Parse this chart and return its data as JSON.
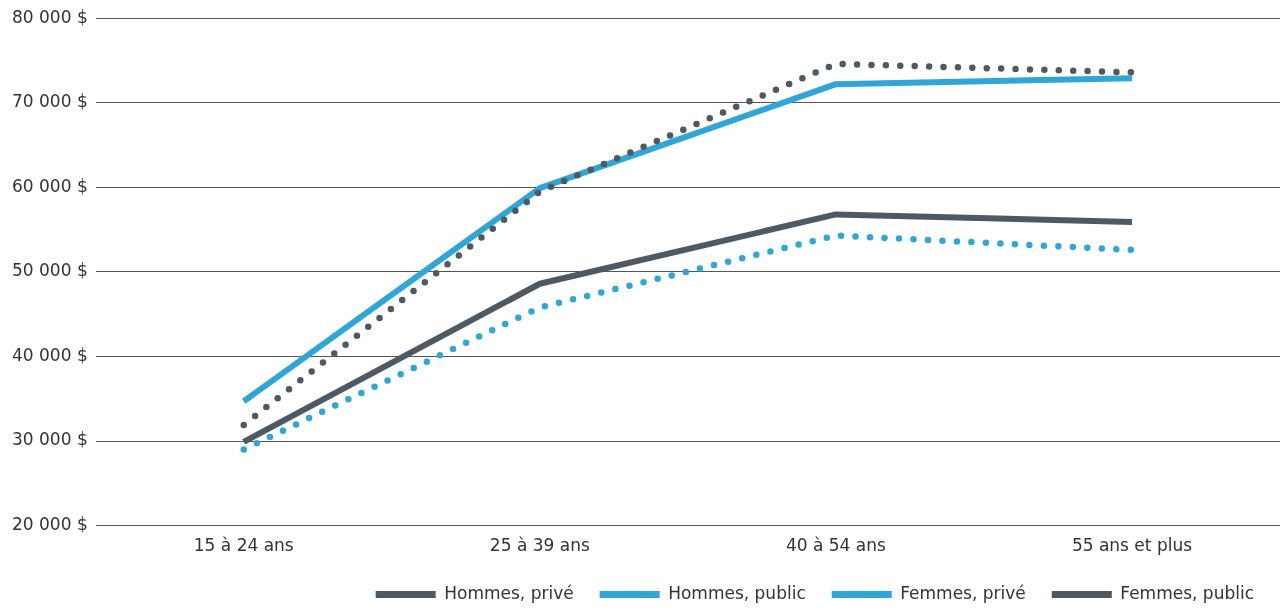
{
  "chart_data": {
    "type": "line",
    "categories": [
      "15 à 24 ans",
      "25 à 39 ans",
      "40 à 54 ans",
      "55 ans et plus"
    ],
    "series": [
      {
        "name": "Hommes, privé",
        "color": "#4d5a63",
        "line_style": "dotted",
        "values": [
          31900,
          59500,
          74600,
          73600
        ]
      },
      {
        "name": "Hommes, public",
        "color": "#2ea7d8",
        "line_style": "solid",
        "values": [
          34700,
          59900,
          72200,
          72900
        ]
      },
      {
        "name": "Femmes, privé",
        "color": "#2ea7d8",
        "line_style": "dotted",
        "values": [
          29000,
          45800,
          54300,
          52600
        ]
      },
      {
        "name": "Femmes, public",
        "color": "#4d5a63",
        "line_style": "solid",
        "values": [
          29900,
          48600,
          56800,
          55900
        ]
      }
    ],
    "ylim": [
      20000,
      80000
    ],
    "yticks": [
      {
        "value": 20000,
        "label": "20 000 $"
      },
      {
        "value": 30000,
        "label": "30 000 $"
      },
      {
        "value": 40000,
        "label": "40 000 $"
      },
      {
        "value": 50000,
        "label": "50 000 $"
      },
      {
        "value": 60000,
        "label": "60 000 $"
      },
      {
        "value": 70000,
        "label": "70 000 $"
      },
      {
        "value": 80000,
        "label": "80 000 $"
      }
    ],
    "grid": "y",
    "legend": "bottom",
    "marker": "none"
  }
}
